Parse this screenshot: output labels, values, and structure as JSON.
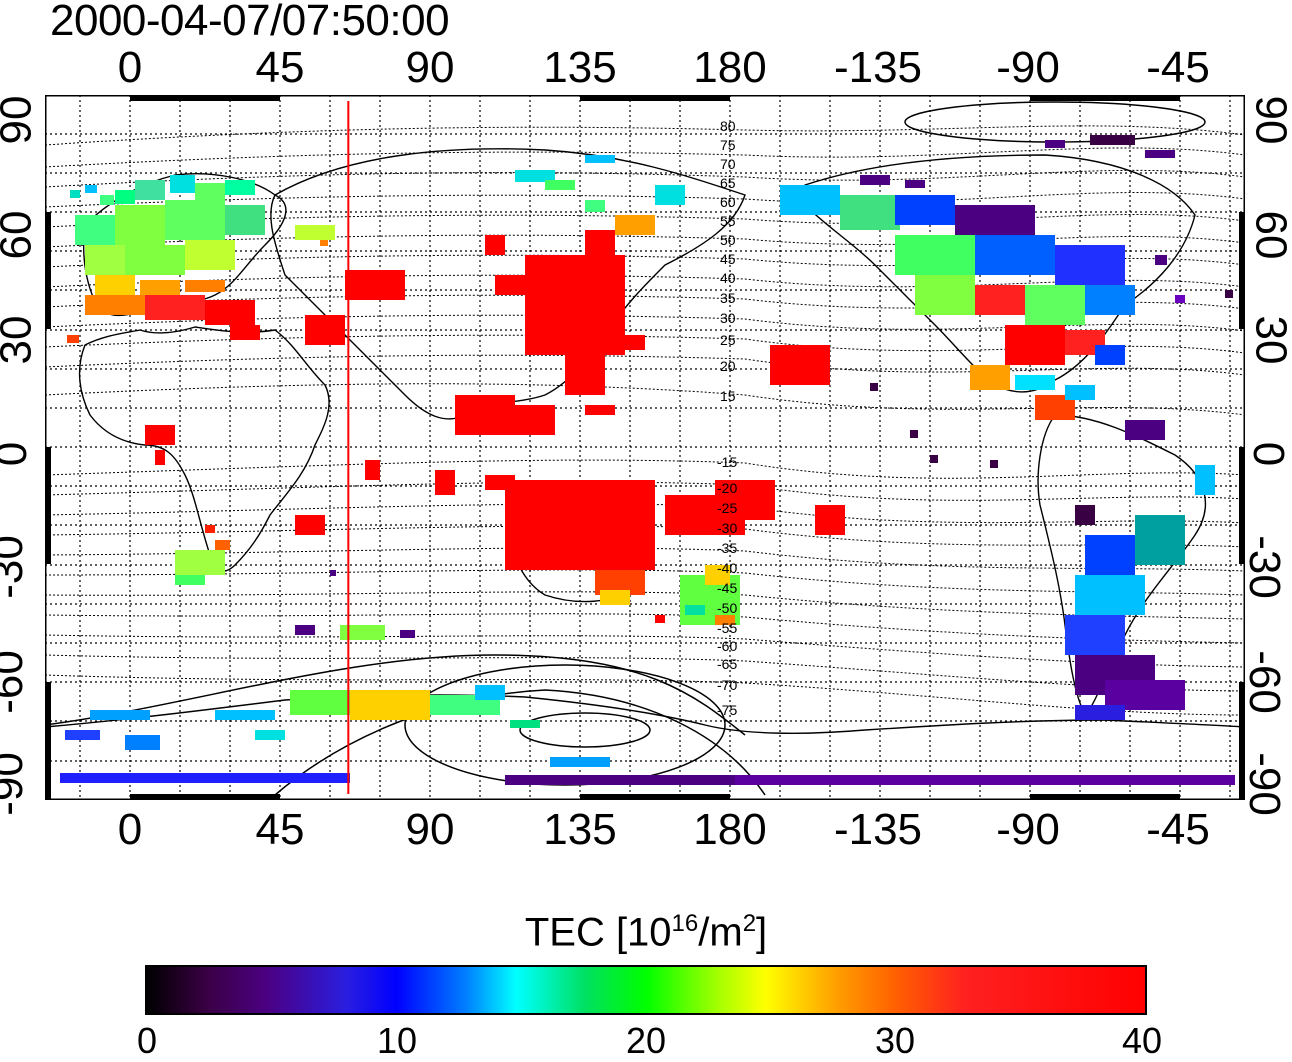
{
  "timestamp": "2000-04-07/07:50:00",
  "lon_ticks_top": [
    "0",
    "45",
    "90",
    "135",
    "180",
    "-135",
    "-90",
    "-45"
  ],
  "lon_ticks_bottom": [
    "0",
    "45",
    "90",
    "135",
    "180",
    "-135",
    "-90",
    "-45"
  ],
  "lat_ticks": [
    "90",
    "60",
    "30",
    "0",
    "-30",
    "-60",
    "-90"
  ],
  "contour_labels_north": [
    "80",
    "75",
    "70",
    "65",
    "60",
    "55",
    "50",
    "45",
    "40",
    "35",
    "30",
    "25",
    "20",
    "15"
  ],
  "contour_labels_south": [
    "-15",
    "-20",
    "-25",
    "-30",
    "-35",
    "-40",
    "-45",
    "-50",
    "-55",
    "-60",
    "-65",
    "-70",
    "-75"
  ],
  "colorbar": {
    "label_main": "TEC  [10",
    "label_exp1": "16",
    "label_mid": "/m",
    "label_exp2": "2",
    "label_end": "]",
    "ticks": [
      "0",
      "10",
      "20",
      "30",
      "40"
    ],
    "min": 0,
    "max": 40
  },
  "colors": {
    "high_tec": "#ff0000",
    "terminator_line": "#ff0000"
  },
  "terminator_lon_deg": 63
}
